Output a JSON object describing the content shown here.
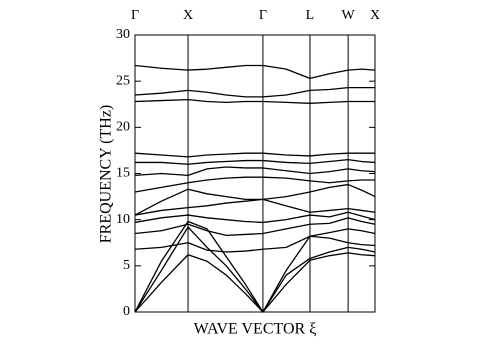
{
  "chart_data": {
    "type": "line",
    "x_label": "WAVE VECTOR ξ",
    "y_label": "FREQUENCY (THz)",
    "color": "#000000",
    "xlim": [
      0,
      1
    ],
    "xticks": [
      {
        "value": 0,
        "label": "Γ"
      },
      {
        "value": 0.221,
        "label": "X"
      },
      {
        "value": 0.533,
        "label": "Γ"
      },
      {
        "value": 0.729,
        "label": "L"
      },
      {
        "value": 0.888,
        "label": "W"
      },
      {
        "value": 1,
        "label": "X"
      }
    ],
    "ylim": [
      0,
      30
    ],
    "yticks": [
      0,
      5,
      10,
      15,
      20,
      25,
      30
    ],
    "x": [
      0,
      0.11,
      0.221,
      0.3,
      0.38,
      0.46,
      0.533,
      0.63,
      0.729,
      0.81,
      0.888,
      0.944,
      1
    ],
    "series": [
      {
        "values": [
          0,
          3.2,
          6.2,
          5.5,
          4,
          2,
          0,
          3,
          5.6,
          6.1,
          6.4,
          6.2,
          6.1
        ]
      },
      {
        "values": [
          0,
          4.5,
          9.2,
          7,
          5,
          2.5,
          0,
          4,
          5.8,
          6.5,
          7,
          6.8,
          6.5
        ]
      },
      {
        "values": [
          0,
          5.5,
          9.8,
          9,
          6,
          3,
          0,
          4.5,
          8.2,
          8,
          7.5,
          7.3,
          7.2
        ]
      },
      {
        "values": [
          6.8,
          7,
          7.5,
          6.7,
          6.5,
          6.6,
          6.8,
          7,
          8.2,
          8.6,
          9,
          8.8,
          8.5
        ]
      },
      {
        "values": [
          8.5,
          8.8,
          9.5,
          8.8,
          8.3,
          8.4,
          8.5,
          9,
          9.5,
          9.6,
          10.2,
          9.8,
          9.5
        ]
      },
      {
        "values": [
          9.7,
          10.2,
          10.5,
          10.2,
          10,
          9.8,
          9.7,
          10,
          10.5,
          10.3,
          10.8,
          10.4,
          10
        ]
      },
      {
        "values": [
          10.5,
          11,
          11.3,
          11.5,
          11.8,
          12,
          12.2,
          11.5,
          10.8,
          11,
          11.2,
          11,
          10.8
        ]
      },
      {
        "values": [
          10.5,
          12,
          13.3,
          12.8,
          12.5,
          12.2,
          12.2,
          12.5,
          13,
          13.5,
          13.8,
          13.2,
          12.5
        ]
      },
      {
        "values": [
          13,
          13.5,
          14,
          14.3,
          14.5,
          14.6,
          14.6,
          14.5,
          14.2,
          14,
          14.2,
          14.3,
          14.3
        ]
      },
      {
        "values": [
          14.8,
          15,
          14.8,
          15.5,
          15.7,
          15.6,
          15.6,
          15.3,
          15,
          15.2,
          15.5,
          15.3,
          15.2
        ]
      },
      {
        "values": [
          16.2,
          16.2,
          16,
          16.2,
          16.3,
          16.4,
          16.4,
          16.2,
          16.1,
          16.3,
          16.5,
          16.3,
          16.2
        ]
      },
      {
        "values": [
          17.2,
          17,
          16.8,
          17,
          17.1,
          17.2,
          17.2,
          17,
          16.9,
          17.1,
          17.2,
          17.2,
          17.2
        ]
      },
      {
        "values": [
          22.8,
          22.9,
          23,
          22.8,
          22.7,
          22.8,
          22.8,
          22.7,
          22.6,
          22.7,
          22.8,
          22.8,
          22.8
        ]
      },
      {
        "values": [
          23.5,
          23.7,
          24,
          23.8,
          23.5,
          23.3,
          23.3,
          23.5,
          24,
          24.1,
          24.3,
          24.3,
          24.3
        ]
      },
      {
        "values": [
          26.7,
          26.4,
          26.2,
          26.3,
          26.5,
          26.7,
          26.7,
          26.3,
          25.3,
          25.8,
          26.2,
          26.3,
          26.2
        ]
      }
    ]
  }
}
